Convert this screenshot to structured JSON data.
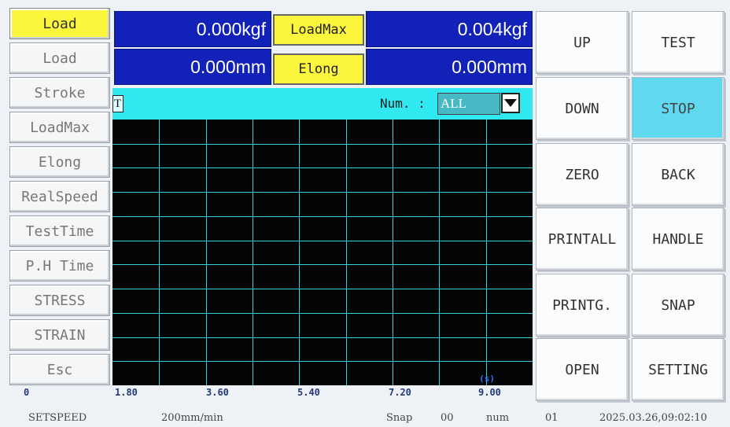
{
  "menu": {
    "items": [
      {
        "label": "Load",
        "active": true
      },
      {
        "label": "Load",
        "active": false
      },
      {
        "label": "Stroke",
        "active": false
      },
      {
        "label": "LoadMax",
        "active": false
      },
      {
        "label": "Elong",
        "active": false
      },
      {
        "label": "RealSpeed",
        "active": false
      },
      {
        "label": "TestTime",
        "active": false
      },
      {
        "label": "P.H Time",
        "active": false
      },
      {
        "label": "STRESS",
        "active": false
      },
      {
        "label": "STRAIN",
        "active": false
      },
      {
        "label": "Esc",
        "active": false
      }
    ]
  },
  "readouts": {
    "load_value": "0.000kgf",
    "stroke_value": "0.000mm",
    "loadmax_label": "LoadMax",
    "loadmax_value": "0.004kgf",
    "elong_label": "Elong",
    "elong_value": "0.000mm"
  },
  "graph_header": {
    "curve_marker": "T",
    "num_label": "Num. :",
    "num_selected": "ALL"
  },
  "graph": {
    "x_ticks": [
      "0",
      "1.80",
      "3.60",
      "5.40",
      "7.20",
      "9.00"
    ],
    "x_unit": "(s)",
    "grid_color": "#2fd0d8",
    "background": "#020406"
  },
  "buttons": [
    {
      "label": "UP"
    },
    {
      "label": "TEST"
    },
    {
      "label": "DOWN"
    },
    {
      "label": "STOP"
    },
    {
      "label": "ZERO"
    },
    {
      "label": "BACK"
    },
    {
      "label": "PRINTALL"
    },
    {
      "label": "HANDLE"
    },
    {
      "label": "PRINTG."
    },
    {
      "label": "SNAP"
    },
    {
      "label": "OPEN"
    },
    {
      "label": "SETTING"
    }
  ],
  "status": {
    "setspeed_label": "SETSPEED",
    "setspeed_value": "200mm/min",
    "snap_label": "Snap",
    "snap_value": "00",
    "num_label": "num",
    "num_value": "01",
    "datetime": "2025.03.26,09:02:10"
  },
  "colors": {
    "accent_yellow": "#fbf53c",
    "readout_blue": "#1222b8",
    "info_cyan": "#2fe8f0",
    "stop_button": "#60d9f0"
  }
}
